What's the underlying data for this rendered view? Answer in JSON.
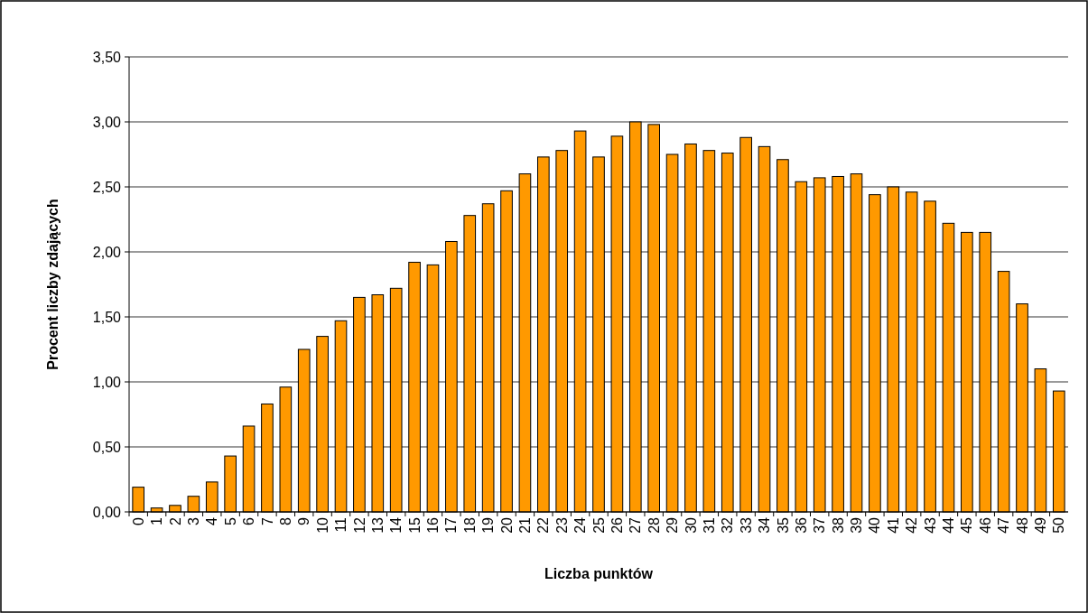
{
  "chart_data": {
    "type": "bar",
    "xlabel": "Liczba punktów",
    "ylabel": "Procent liczby zdających",
    "categories": [
      "0",
      "1",
      "2",
      "3",
      "4",
      "5",
      "6",
      "7",
      "8",
      "9",
      "10",
      "11",
      "12",
      "13",
      "14",
      "15",
      "16",
      "17",
      "18",
      "19",
      "20",
      "21",
      "22",
      "23",
      "24",
      "25",
      "26",
      "27",
      "28",
      "29",
      "30",
      "31",
      "32",
      "33",
      "34",
      "35",
      "36",
      "37",
      "38",
      "39",
      "40",
      "41",
      "42",
      "43",
      "44",
      "45",
      "46",
      "47",
      "48",
      "49",
      "50"
    ],
    "values": [
      0.19,
      0.03,
      0.05,
      0.12,
      0.23,
      0.43,
      0.66,
      0.83,
      0.96,
      1.25,
      1.35,
      1.47,
      1.65,
      1.67,
      1.72,
      1.92,
      1.9,
      2.08,
      2.28,
      2.37,
      2.47,
      2.6,
      2.73,
      2.78,
      2.93,
      2.73,
      2.89,
      3.0,
      2.98,
      2.75,
      2.83,
      2.78,
      2.76,
      2.88,
      2.81,
      2.71,
      2.54,
      2.57,
      2.58,
      2.6,
      2.44,
      2.5,
      2.46,
      2.39,
      2.22,
      2.15,
      2.15,
      1.85,
      1.6,
      1.1,
      0.93
    ],
    "color": "#ff9900",
    "ylim": [
      0,
      3.5
    ],
    "yticks": [
      {
        "value": 0,
        "label": "0,00"
      },
      {
        "value": 0.5,
        "label": "0,50"
      },
      {
        "value": 1,
        "label": "1,00"
      },
      {
        "value": 1.5,
        "label": "1,50"
      },
      {
        "value": 2,
        "label": "2,00"
      },
      {
        "value": 2.5,
        "label": "2,50"
      },
      {
        "value": 3,
        "label": "3,00"
      },
      {
        "value": 3.5,
        "label": "3,50"
      }
    ],
    "grid": "y"
  }
}
